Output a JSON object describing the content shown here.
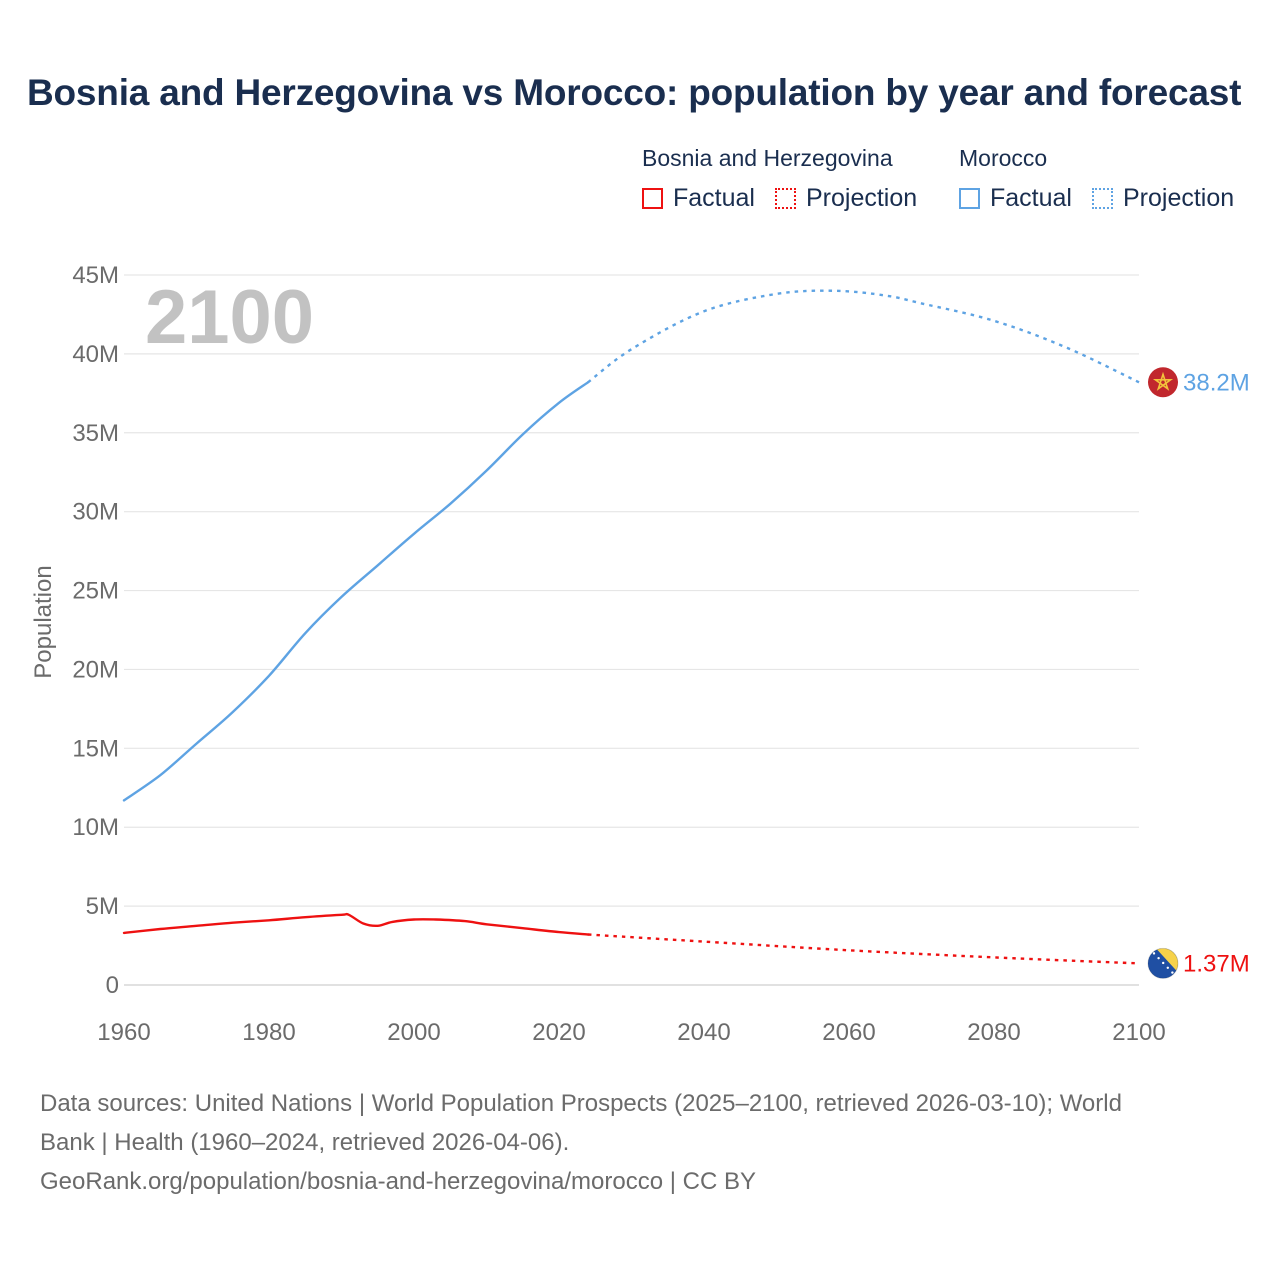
{
  "title": "Bosnia and Herzegovina vs Morocco: population by year and forecast",
  "legend": {
    "groups": [
      {
        "name": "Bosnia and Herzegovina",
        "color": "#ee1111",
        "factual": "Factual",
        "projection": "Projection"
      },
      {
        "name": "Morocco",
        "color": "#5ea3e3",
        "factual": "Factual",
        "projection": "Projection"
      }
    ]
  },
  "chart_data": {
    "type": "line",
    "title": "Bosnia and Herzegovina vs Morocco: population by year and forecast",
    "ylabel": "Population",
    "xlabel": "",
    "xlim": [
      1960,
      2100
    ],
    "ylim": [
      0,
      45000000
    ],
    "x_ticks": [
      {
        "value": 1960,
        "label": "1960"
      },
      {
        "value": 1980,
        "label": "1980"
      },
      {
        "value": 2000,
        "label": "2000"
      },
      {
        "value": 2020,
        "label": "2020"
      },
      {
        "value": 2040,
        "label": "2040"
      },
      {
        "value": 2060,
        "label": "2060"
      },
      {
        "value": 2080,
        "label": "2080"
      },
      {
        "value": 2100,
        "label": "2100"
      }
    ],
    "y_ticks": [
      {
        "value": 0,
        "label": "0"
      },
      {
        "value": 5000000,
        "label": "5M"
      },
      {
        "value": 10000000,
        "label": "10M"
      },
      {
        "value": 15000000,
        "label": "15M"
      },
      {
        "value": 20000000,
        "label": "20M"
      },
      {
        "value": 25000000,
        "label": "25M"
      },
      {
        "value": 30000000,
        "label": "30M"
      },
      {
        "value": 35000000,
        "label": "35M"
      },
      {
        "value": 40000000,
        "label": "40M"
      },
      {
        "value": 45000000,
        "label": "45M"
      }
    ],
    "year_watermark": "2100",
    "grid": true,
    "series": [
      {
        "name": "Morocco",
        "color": "#5ea3e3",
        "end_label": "38.2M",
        "flag_icon": "morocco-flag-icon",
        "factual": [
          [
            1960,
            11700000
          ],
          [
            1965,
            13300000
          ],
          [
            1970,
            15300000
          ],
          [
            1975,
            17300000
          ],
          [
            1980,
            19600000
          ],
          [
            1985,
            22300000
          ],
          [
            1990,
            24600000
          ],
          [
            1995,
            26600000
          ],
          [
            2000,
            28600000
          ],
          [
            2005,
            30500000
          ],
          [
            2010,
            32600000
          ],
          [
            2015,
            34900000
          ],
          [
            2020,
            36900000
          ],
          [
            2024,
            38200000
          ]
        ],
        "projection": [
          [
            2024,
            38200000
          ],
          [
            2030,
            40300000
          ],
          [
            2040,
            42700000
          ],
          [
            2050,
            43800000
          ],
          [
            2058,
            44000000
          ],
          [
            2065,
            43700000
          ],
          [
            2070,
            43200000
          ],
          [
            2080,
            42100000
          ],
          [
            2090,
            40400000
          ],
          [
            2100,
            38200000
          ]
        ]
      },
      {
        "name": "Bosnia and Herzegovina",
        "color": "#ee1111",
        "end_label": "1.37M",
        "flag_icon": "bosnia-flag-icon",
        "factual": [
          [
            1960,
            3300000
          ],
          [
            1965,
            3550000
          ],
          [
            1970,
            3750000
          ],
          [
            1975,
            3950000
          ],
          [
            1980,
            4100000
          ],
          [
            1985,
            4300000
          ],
          [
            1990,
            4450000
          ],
          [
            1991,
            4450000
          ],
          [
            1993,
            3900000
          ],
          [
            1995,
            3750000
          ],
          [
            1997,
            4000000
          ],
          [
            2000,
            4150000
          ],
          [
            2003,
            4150000
          ],
          [
            2007,
            4050000
          ],
          [
            2010,
            3850000
          ],
          [
            2015,
            3600000
          ],
          [
            2020,
            3350000
          ],
          [
            2024,
            3200000
          ]
        ],
        "projection": [
          [
            2024,
            3200000
          ],
          [
            2040,
            2750000
          ],
          [
            2060,
            2200000
          ],
          [
            2080,
            1750000
          ],
          [
            2100,
            1370000
          ]
        ]
      }
    ]
  },
  "sources": {
    "line1": "Data sources: United Nations | World Population Prospects (2025–2100, retrieved 2026-03-10); World",
    "line2": "Bank | Health (1960–2024, retrieved 2026-04-06).",
    "line3": "GeoRank.org/population/bosnia-and-herzegovina/morocco | CC BY"
  }
}
